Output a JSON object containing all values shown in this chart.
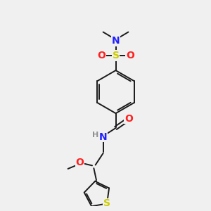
{
  "background_color": "#f0f0f0",
  "bond_color": "#1a1a1a",
  "colors": {
    "N": "#2020ff",
    "O": "#ff2020",
    "S_sulfonamide": "#cccc00",
    "S_thiophene": "#cccc00",
    "C": "#1a1a1a",
    "H": "#909090"
  },
  "figsize": [
    3.0,
    3.0
  ],
  "dpi": 100
}
